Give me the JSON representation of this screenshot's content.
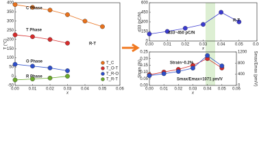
{
  "chart_data": [
    {
      "type": "line",
      "xlabel": "x",
      "ylabel": "T (°C)",
      "xlim": [
        0,
        0.06
      ],
      "xticks": [
        {
          "value": 0,
          "label": "0.00"
        },
        {
          "value": 0.01,
          "label": "0.01"
        },
        {
          "value": 0.02,
          "label": "0.02"
        },
        {
          "value": 0.03,
          "label": "0.03"
        },
        {
          "value": 0.04,
          "label": "0.04"
        },
        {
          "value": 0.05,
          "label": "0.05"
        },
        {
          "value": 0.06,
          "label": "0.06"
        }
      ],
      "ylim": [
        -50,
        400
      ],
      "yticks": [
        -50,
        0,
        50,
        100,
        150,
        200,
        250,
        300,
        350,
        400
      ],
      "annotations": [
        "C Phase",
        "T Phase",
        "O Phase",
        "R Phase",
        "R-T"
      ],
      "series": [
        {
          "name": "T_C",
          "color": "#e8711c",
          "x": [
            0,
            0.01,
            0.02,
            0.03,
            0.04,
            0.05
          ],
          "values": [
            390,
            375,
            360,
            335,
            300,
            270
          ]
        },
        {
          "name": "T_O-T",
          "color": "#d62c2c",
          "x": [
            0,
            0.01,
            0.02,
            0.03
          ],
          "values": [
            225,
            215,
            200,
            180
          ]
        },
        {
          "name": "T_R-O",
          "color": "#2d4ec9",
          "x": [
            0,
            0.01,
            0.02,
            0.03
          ],
          "values": [
            65,
            55,
            45,
            30
          ]
        },
        {
          "name": "T_R-T",
          "color": "#6aa82c",
          "x": [
            0,
            0.01,
            0.02,
            0.03
          ],
          "values": [
            -20,
            -15,
            -10,
            0
          ]
        }
      ]
    },
    {
      "type": "line",
      "xlabel": "x",
      "ylabel": "d33 (pC/N)",
      "xlim": [
        0,
        0.06
      ],
      "xticks": [
        {
          "value": 0,
          "label": "0.00"
        },
        {
          "value": 0.01,
          "label": "0.01"
        },
        {
          "value": 0.02,
          "label": "0.02"
        },
        {
          "value": 0.03,
          "label": "0.03"
        },
        {
          "value": 0.04,
          "label": "0.04"
        },
        {
          "value": 0.05,
          "label": "0.05"
        },
        {
          "value": 0.06,
          "label": "0.06"
        }
      ],
      "ylim": [
        0,
        600
      ],
      "yticks": [
        0,
        150,
        300,
        450,
        600
      ],
      "annotations": [
        "d33~450 pC/N",
        "R-T"
      ],
      "series": [
        {
          "name": "d33",
          "color": "#3a3ad0",
          "x": [
            0,
            0.01,
            0.02,
            0.03,
            0.04,
            0.05
          ],
          "values": [
            110,
            150,
            200,
            260,
            450,
            300
          ]
        }
      ]
    },
    {
      "type": "line",
      "xlabel": "x",
      "ylabel": "Strain (%)",
      "y2label": "Smax/Emax (pm/V)",
      "xlim": [
        0,
        0.06
      ],
      "xticks": [
        {
          "value": 0,
          "label": "0.00"
        },
        {
          "value": 0.01,
          "label": "0.01"
        },
        {
          "value": 0.02,
          "label": "0.02"
        },
        {
          "value": 0.03,
          "label": "0.03"
        },
        {
          "value": 0.04,
          "label": "0.04"
        },
        {
          "value": 0.05,
          "label": "0.05"
        },
        {
          "value": 0.06,
          "label": "0.06"
        }
      ],
      "ylim": [
        0,
        0.25
      ],
      "yticks": [
        {
          "value": 0,
          "label": "0.00"
        },
        {
          "value": 0.05,
          "label": "0.05"
        },
        {
          "value": 0.1,
          "label": "0.10"
        },
        {
          "value": 0.15,
          "label": "0.15"
        },
        {
          "value": 0.2,
          "label": "0.20"
        },
        {
          "value": 0.25,
          "label": "0.25"
        }
      ],
      "y2lim": [
        0,
        1200
      ],
      "y2ticks": [
        0,
        400,
        800,
        1200
      ],
      "annotations": [
        "Strain~0.2%",
        "Smax/Emax=1071 pm/V"
      ],
      "series": [
        {
          "name": "Strain",
          "color": "#d62c2c",
          "x": [
            0,
            0.01,
            0.02,
            0.03,
            0.04,
            0.05
          ],
          "values": [
            0.08,
            0.1,
            0.12,
            0.15,
            0.2,
            0.13
          ]
        },
        {
          "name": "Smax/Emax",
          "color": "#2d4ec9",
          "axis": "y2",
          "x": [
            0,
            0.01,
            0.02,
            0.03,
            0.04,
            0.05
          ],
          "values": [
            350,
            420,
            500,
            620,
            1071,
            700
          ]
        }
      ]
    }
  ]
}
